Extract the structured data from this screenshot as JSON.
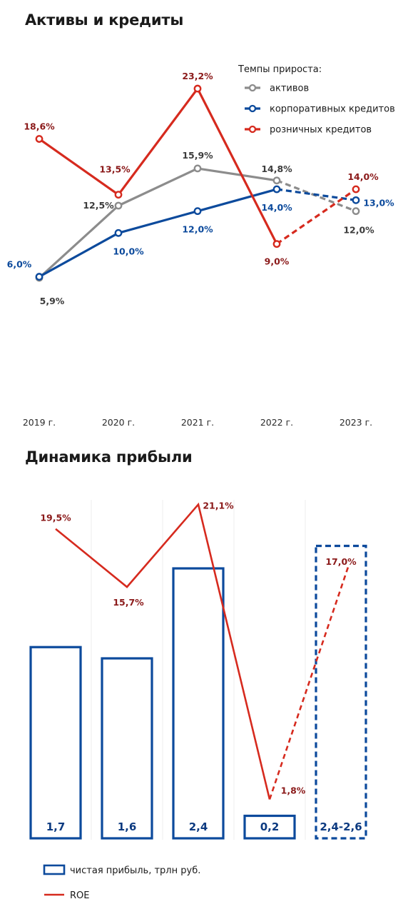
{
  "charts": [
    {
      "title": "Активы и кредиты",
      "legend_title": "Темпы прироста:",
      "categories": [
        "2019 г.",
        "2020 г.",
        "2021 г.",
        "2022 г.",
        "2023 г."
      ],
      "series": [
        {
          "name": "активов",
          "color": "#8c8c8c",
          "values": [
            5.9,
            12.5,
            15.9,
            14.8,
            12.0
          ],
          "labels": [
            "5,9%",
            "12,5%",
            "15,9%",
            "14,8%",
            "12,0%"
          ],
          "label_color": "#3c3c3c",
          "forecast_from_index": 3
        },
        {
          "name": "корпоративных кредитов",
          "color": "#0c4a9c",
          "values": [
            6.0,
            10.0,
            12.0,
            14.0,
            13.0
          ],
          "labels": [
            "6,0%",
            "10,0%",
            "12,0%",
            "14,0%",
            "13,0%"
          ],
          "label_color": "#0c4a9c",
          "forecast_from_index": 3
        },
        {
          "name": "розничных кредитов",
          "color": "#d62a1e",
          "values": [
            18.6,
            13.5,
            23.2,
            9.0,
            14.0
          ],
          "labels": [
            "18,6%",
            "13,5%",
            "23,2%",
            "9,0%",
            "14,0%"
          ],
          "label_color": "#8b1a1a",
          "forecast_from_index": 3
        }
      ]
    },
    {
      "title": "Динамика прибыли",
      "categories": [
        "",
        "",
        "",
        "",
        ""
      ],
      "bars": {
        "name": "чистая прибыль, трлн руб.",
        "color": "#0c4a9c",
        "values": [
          1.7,
          1.6,
          2.4,
          0.2,
          2.5
        ],
        "labels": [
          "1,7",
          "1,6",
          "2,4",
          "0,2",
          "2,4-2,6"
        ],
        "forecast_index": 4
      },
      "line": {
        "name": "ROE",
        "color": "#d62a1e",
        "values": [
          19.5,
          15.7,
          21.1,
          1.8,
          17.0
        ],
        "labels": [
          "19,5%",
          "15,7%",
          "21,1%",
          "1,8%",
          "17,0%"
        ],
        "label_color": "#8b1a1a",
        "forecast_from_index": 3
      }
    }
  ],
  "chart_data": [
    {
      "type": "line",
      "title": "Активы и кредиты",
      "categories": [
        "2019 г.",
        "2020 г.",
        "2021 г.",
        "2022 г.",
        "2023 г."
      ],
      "series": [
        {
          "name": "активов",
          "values": [
            5.9,
            12.5,
            15.9,
            14.8,
            12.0
          ]
        },
        {
          "name": "корпоративных кредитов",
          "values": [
            6.0,
            10.0,
            12.0,
            14.0,
            13.0
          ]
        },
        {
          "name": "розничных кредитов",
          "values": [
            18.6,
            13.5,
            23.2,
            9.0,
            14.0
          ]
        }
      ],
      "legend": "top-right",
      "grid": false
    },
    {
      "type": "bar",
      "title": "Динамика прибыли",
      "categories": [
        "",
        "",
        "",
        "",
        ""
      ],
      "series": [
        {
          "name": "чистая прибыль, трлн руб.",
          "values": [
            1.7,
            1.6,
            2.4,
            0.2,
            2.5
          ]
        },
        {
          "name": "ROE",
          "values": [
            19.5,
            15.7,
            21.1,
            1.8,
            17.0
          ]
        }
      ],
      "legend": "bottom",
      "grid": false
    }
  ]
}
